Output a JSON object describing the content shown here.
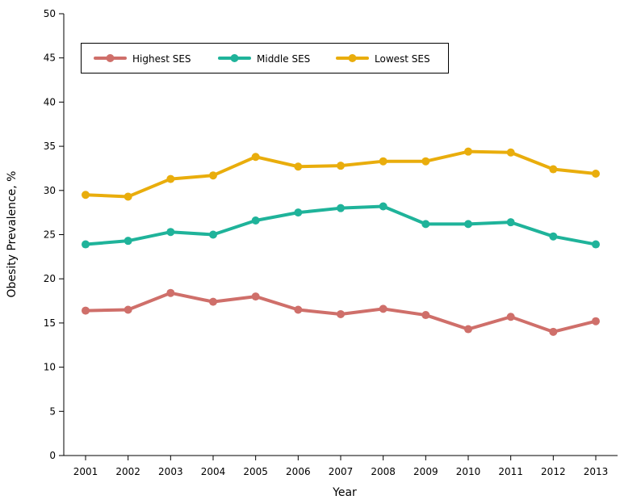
{
  "chart_data": {
    "type": "line",
    "title": "",
    "xlabel": "Year",
    "ylabel": "Obesity Prevalence, %",
    "ylim": [
      0,
      50
    ],
    "yticks": [
      0,
      5,
      10,
      15,
      20,
      25,
      30,
      35,
      40,
      45,
      50
    ],
    "x": [
      "2001",
      "2002",
      "2003",
      "2004",
      "2005",
      "2006",
      "2007",
      "2008",
      "2009",
      "2010",
      "2011",
      "2012",
      "2013"
    ],
    "grid": false,
    "legend_placement": "top-left",
    "series": [
      {
        "name": "Highest SES",
        "color": "#CF6F6A",
        "values": [
          16.4,
          16.5,
          18.4,
          17.4,
          18.0,
          16.5,
          16.0,
          16.6,
          15.9,
          14.3,
          15.7,
          14.0,
          15.2
        ]
      },
      {
        "name": "Middle SES",
        "color": "#1FB39A",
        "values": [
          23.9,
          24.3,
          25.3,
          25.0,
          26.6,
          27.5,
          28.0,
          28.2,
          26.2,
          26.2,
          26.4,
          24.8,
          23.9
        ]
      },
      {
        "name": "Lowest SES",
        "color": "#E9AD0C",
        "values": [
          29.5,
          29.3,
          31.3,
          31.7,
          33.8,
          32.7,
          32.8,
          33.3,
          33.3,
          34.4,
          34.3,
          32.4,
          31.9
        ]
      }
    ]
  }
}
